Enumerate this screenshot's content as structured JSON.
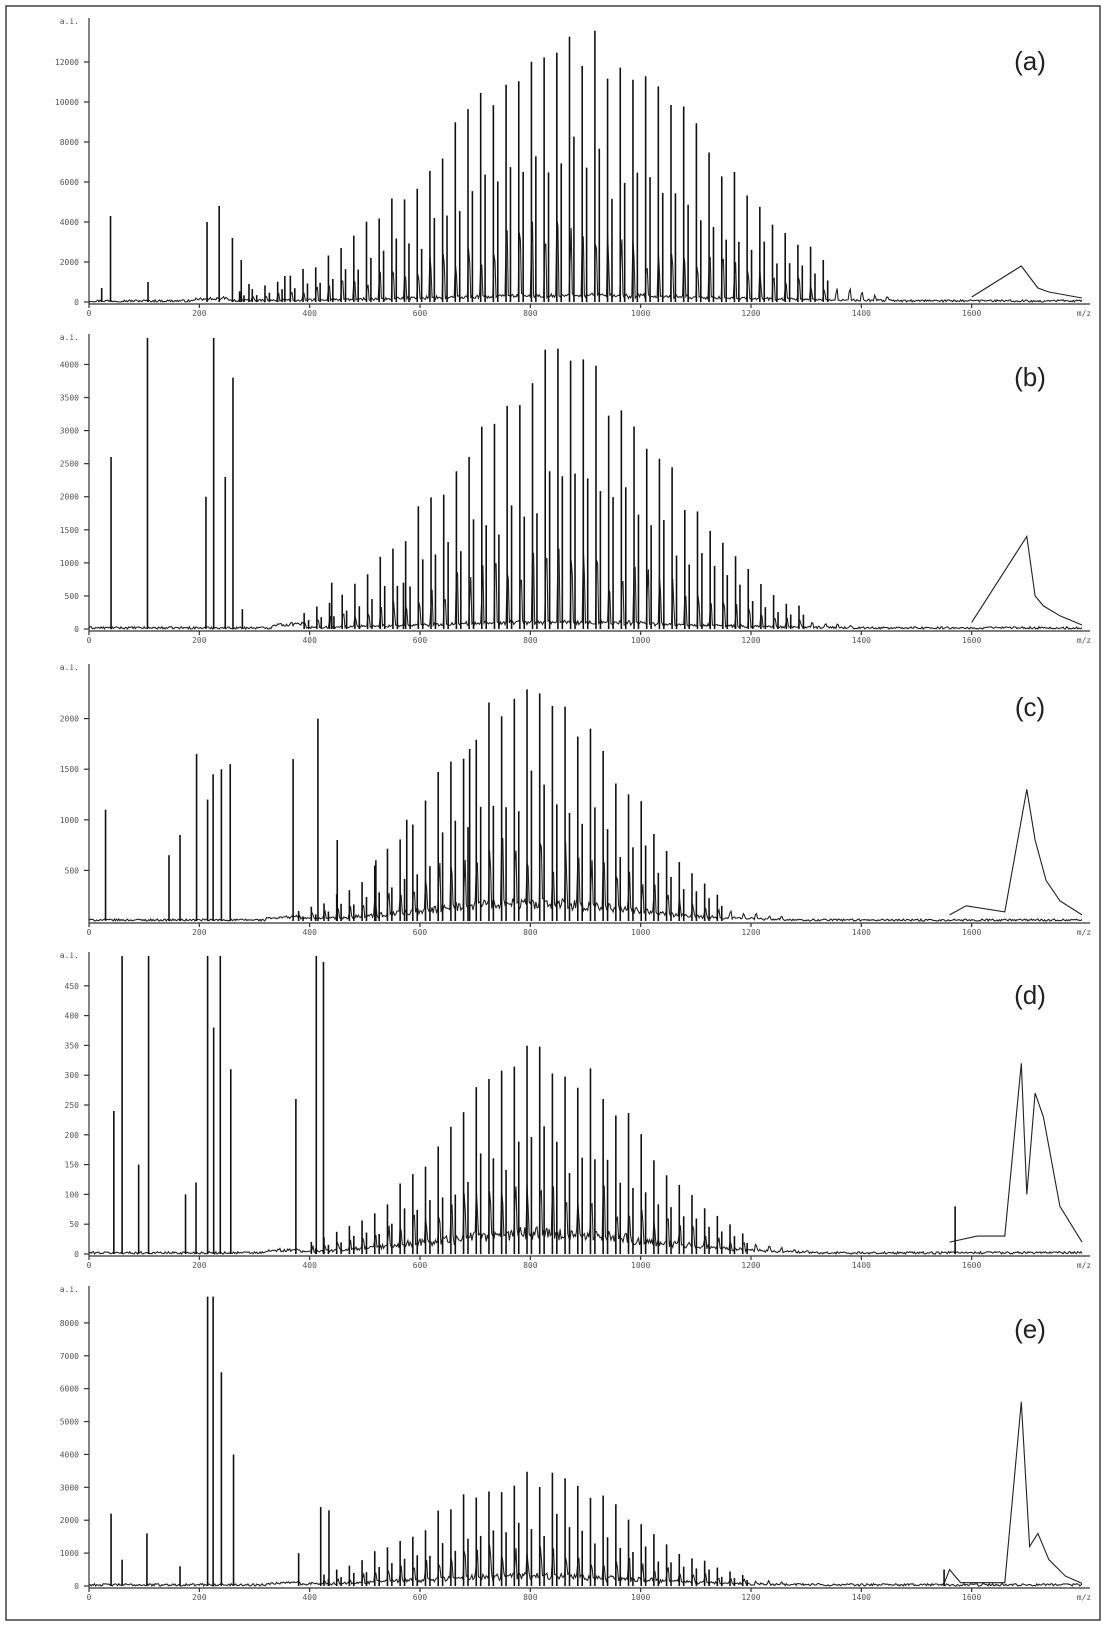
{
  "chart_data": [
    {
      "type": "line",
      "panel_label": "(a)",
      "xlim": [
        0,
        1800
      ],
      "x_ticks": [
        0,
        200,
        400,
        600,
        800,
        1000,
        1200,
        1400,
        1600
      ],
      "x_tick_labels": [
        "0",
        "200",
        "400",
        "600",
        "800",
        "1000",
        "1200",
        "1400",
        "1600"
      ],
      "x_end_label": "m/z",
      "ylim": [
        0,
        14000
      ],
      "y_ticks": [
        0,
        2000,
        4000,
        6000,
        8000,
        10000,
        12000
      ],
      "y_tick_labels": [
        "0",
        "2000",
        "4000",
        "6000",
        "8000",
        "10000",
        "12000"
      ],
      "y_top_label": "a.i.",
      "envelope": {
        "start": 250,
        "center": 880,
        "end": 1350,
        "step": 23,
        "peak": 14000
      },
      "tail": [
        [
          1600,
          250
        ],
        [
          1690,
          1800
        ],
        [
          1720,
          700
        ],
        [
          1740,
          500
        ],
        [
          1770,
          350
        ],
        [
          1800,
          200
        ]
      ],
      "baseline": 350,
      "peaks": [
        {
          "mz": 39,
          "intensity": 4300
        },
        {
          "mz": 23,
          "intensity": 700
        },
        {
          "mz": 107,
          "intensity": 1000
        },
        {
          "mz": 214,
          "intensity": 4000
        },
        {
          "mz": 236,
          "intensity": 4800
        },
        {
          "mz": 260,
          "intensity": 3200
        },
        {
          "mz": 276,
          "intensity": 2100
        },
        {
          "mz": 290,
          "intensity": 900
        },
        {
          "mz": 355,
          "intensity": 1300
        }
      ]
    },
    {
      "type": "line",
      "panel_label": "(b)",
      "xlim": [
        0,
        1800
      ],
      "x_ticks": [
        0,
        200,
        400,
        600,
        800,
        1000,
        1200,
        1400,
        1600
      ],
      "x_tick_labels": [
        "0",
        "200",
        "400",
        "600",
        "800",
        "1000",
        "1200",
        "1400",
        "1600"
      ],
      "x_end_label": "m/z",
      "ylim": [
        0,
        4400
      ],
      "y_ticks": [
        0,
        500,
        1000,
        1500,
        2000,
        2500,
        3000,
        3500,
        4000
      ],
      "y_tick_labels": [
        "0",
        "500",
        "1000",
        "1500",
        "2000",
        "2500",
        "3000",
        "3500",
        "4000"
      ],
      "y_top_label": "a.i.",
      "envelope": {
        "start": 390,
        "center": 850,
        "end": 1290,
        "step": 23,
        "peak": 4300
      },
      "tail": [
        [
          1600,
          100
        ],
        [
          1700,
          1400
        ],
        [
          1715,
          500
        ],
        [
          1730,
          350
        ],
        [
          1760,
          200
        ],
        [
          1800,
          60
        ]
      ],
      "baseline": 120,
      "peaks": [
        {
          "mz": 40,
          "intensity": 2600
        },
        {
          "mz": 106,
          "intensity": 4400
        },
        {
          "mz": 212,
          "intensity": 2000
        },
        {
          "mz": 226,
          "intensity": 4400
        },
        {
          "mz": 247,
          "intensity": 2300
        },
        {
          "mz": 261,
          "intensity": 3800
        },
        {
          "mz": 278,
          "intensity": 300
        },
        {
          "mz": 440,
          "intensity": 700
        },
        {
          "mz": 570,
          "intensity": 700
        }
      ]
    },
    {
      "type": "line",
      "panel_label": "(c)",
      "xlim": [
        0,
        1800
      ],
      "x_ticks": [
        0,
        200,
        400,
        600,
        800,
        1000,
        1200,
        1400,
        1600
      ],
      "x_tick_labels": [
        "0",
        "200",
        "400",
        "600",
        "800",
        "1000",
        "1200",
        "1400",
        "1600"
      ],
      "x_end_label": "m/z",
      "ylim": [
        0,
        2500
      ],
      "y_ticks": [
        500,
        1000,
        1500,
        2000
      ],
      "y_tick_labels": [
        "500",
        "1000",
        "1500",
        "2000"
      ],
      "y_top_label": "a.i.",
      "envelope": {
        "start": 380,
        "center": 800,
        "end": 1150,
        "step": 23,
        "peak": 2450
      },
      "tail": [
        [
          1560,
          60
        ],
        [
          1590,
          150
        ],
        [
          1660,
          90
        ],
        [
          1700,
          1300
        ],
        [
          1715,
          800
        ],
        [
          1735,
          400
        ],
        [
          1760,
          200
        ],
        [
          1800,
          60
        ]
      ],
      "baseline": 220,
      "peaks": [
        {
          "mz": 30,
          "intensity": 1100
        },
        {
          "mz": 145,
          "intensity": 650
        },
        {
          "mz": 165,
          "intensity": 850
        },
        {
          "mz": 195,
          "intensity": 1650
        },
        {
          "mz": 215,
          "intensity": 1200
        },
        {
          "mz": 225,
          "intensity": 1450
        },
        {
          "mz": 240,
          "intensity": 1500
        },
        {
          "mz": 256,
          "intensity": 1550
        },
        {
          "mz": 370,
          "intensity": 1600
        },
        {
          "mz": 415,
          "intensity": 2000
        },
        {
          "mz": 450,
          "intensity": 800
        },
        {
          "mz": 520,
          "intensity": 600
        },
        {
          "mz": 576,
          "intensity": 1000
        },
        {
          "mz": 690,
          "intensity": 1700
        }
      ]
    },
    {
      "type": "line",
      "panel_label": "(d)",
      "xlim": [
        0,
        1800
      ],
      "x_ticks": [
        0,
        200,
        400,
        600,
        800,
        1000,
        1200,
        1400,
        1600
      ],
      "x_tick_labels": [
        "0",
        "200",
        "400",
        "600",
        "800",
        "1000",
        "1200",
        "1400",
        "1600"
      ],
      "x_end_label": "m/z",
      "ylim": [
        0,
        500
      ],
      "y_ticks": [
        0,
        50,
        100,
        150,
        200,
        250,
        300,
        350,
        400,
        450
      ],
      "y_tick_labels": [
        "0",
        "50",
        "100",
        "150",
        "200",
        "250",
        "300",
        "350",
        "400",
        "450"
      ],
      "y_top_label": "a.i.",
      "envelope": {
        "start": 380,
        "center": 820,
        "end": 1190,
        "step": 23,
        "peak": 355
      },
      "tail": [
        [
          1560,
          20
        ],
        [
          1610,
          30
        ],
        [
          1660,
          30
        ],
        [
          1690,
          320
        ],
        [
          1700,
          100
        ],
        [
          1715,
          270
        ],
        [
          1730,
          230
        ],
        [
          1760,
          80
        ],
        [
          1800,
          20
        ]
      ],
      "baseline": 45,
      "peaks": [
        {
          "mz": 45,
          "intensity": 240
        },
        {
          "mz": 60,
          "intensity": 500
        },
        {
          "mz": 90,
          "intensity": 150
        },
        {
          "mz": 108,
          "intensity": 500
        },
        {
          "mz": 175,
          "intensity": 100
        },
        {
          "mz": 194,
          "intensity": 120
        },
        {
          "mz": 215,
          "intensity": 500
        },
        {
          "mz": 226,
          "intensity": 380
        },
        {
          "mz": 238,
          "intensity": 500
        },
        {
          "mz": 257,
          "intensity": 310
        },
        {
          "mz": 375,
          "intensity": 260
        },
        {
          "mz": 412,
          "intensity": 500
        },
        {
          "mz": 425,
          "intensity": 490
        },
        {
          "mz": 1570,
          "intensity": 80
        }
      ]
    },
    {
      "type": "line",
      "panel_label": "(e)",
      "xlim": [
        0,
        1800
      ],
      "x_ticks": [
        0,
        200,
        400,
        600,
        800,
        1000,
        1200,
        1400,
        1600
      ],
      "x_tick_labels": [
        "0",
        "200",
        "400",
        "600",
        "800",
        "1000",
        "1200",
        "1400",
        "1600"
      ],
      "x_end_label": "m/z",
      "ylim": [
        0,
        9000
      ],
      "y_ticks": [
        0,
        1000,
        2000,
        3000,
        4000,
        5000,
        6000,
        7000,
        8000
      ],
      "y_tick_labels": [
        "0",
        "1000",
        "2000",
        "3000",
        "4000",
        "5000",
        "6000",
        "7000",
        "8000"
      ],
      "y_top_label": "a.i.",
      "envelope": {
        "start": 380,
        "center": 800,
        "end": 1210,
        "step": 23,
        "peak": 3600
      },
      "tail": [
        [
          1550,
          80
        ],
        [
          1560,
          500
        ],
        [
          1580,
          100
        ],
        [
          1660,
          100
        ],
        [
          1690,
          5600
        ],
        [
          1705,
          1200
        ],
        [
          1720,
          1600
        ],
        [
          1740,
          800
        ],
        [
          1770,
          300
        ],
        [
          1800,
          80
        ]
      ],
      "baseline": 350,
      "peaks": [
        {
          "mz": 40,
          "intensity": 2200
        },
        {
          "mz": 60,
          "intensity": 800
        },
        {
          "mz": 105,
          "intensity": 1600
        },
        {
          "mz": 165,
          "intensity": 600
        },
        {
          "mz": 215,
          "intensity": 8800
        },
        {
          "mz": 225,
          "intensity": 8800
        },
        {
          "mz": 240,
          "intensity": 6500
        },
        {
          "mz": 262,
          "intensity": 4000
        },
        {
          "mz": 380,
          "intensity": 1000
        },
        {
          "mz": 420,
          "intensity": 2400
        },
        {
          "mz": 435,
          "intensity": 2300
        },
        {
          "mz": 1550,
          "intensity": 500
        }
      ]
    }
  ]
}
